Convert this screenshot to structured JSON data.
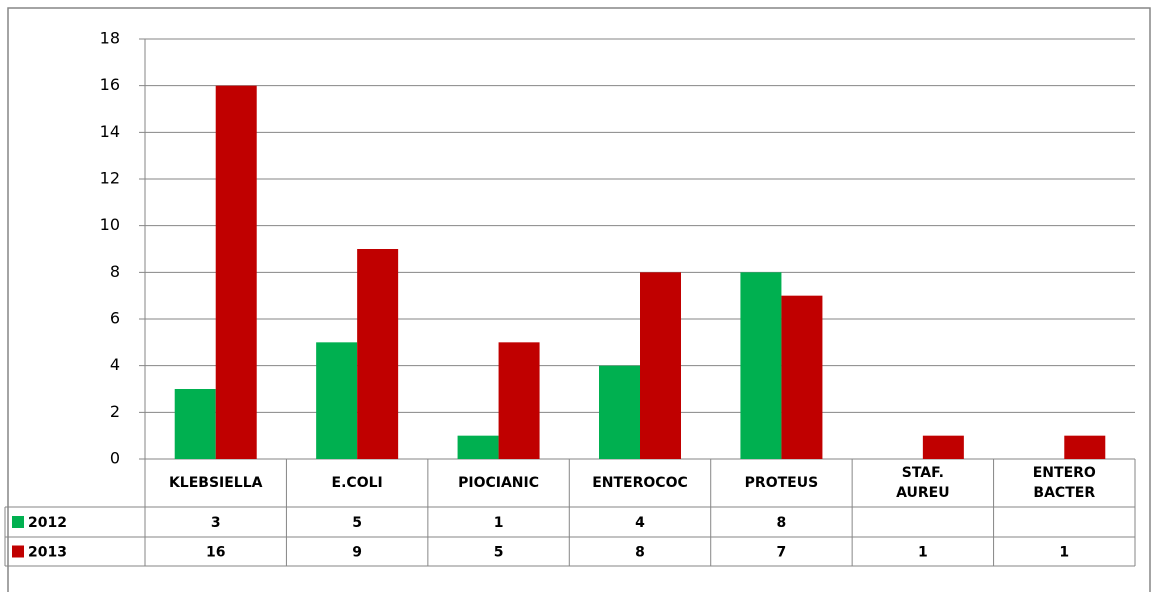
{
  "chart_data": {
    "type": "bar",
    "categories": [
      "KLEBSIELLA",
      "E.COLI",
      "PIOCIANIC",
      "ENTEROCOC",
      "PROTEUS",
      "STAF. AUREU",
      "ENTERO BACTER"
    ],
    "series": [
      {
        "name": "2012",
        "color": "#00b050",
        "values": [
          3,
          5,
          1,
          4,
          8,
          null,
          null
        ]
      },
      {
        "name": "2013",
        "color": "#c00000",
        "values": [
          16,
          9,
          5,
          8,
          7,
          1,
          1
        ]
      }
    ],
    "ylim": [
      0,
      18
    ],
    "yticks": [
      0,
      2,
      4,
      6,
      8,
      10,
      12,
      14,
      16,
      18
    ],
    "grid": true,
    "data_table": true
  }
}
